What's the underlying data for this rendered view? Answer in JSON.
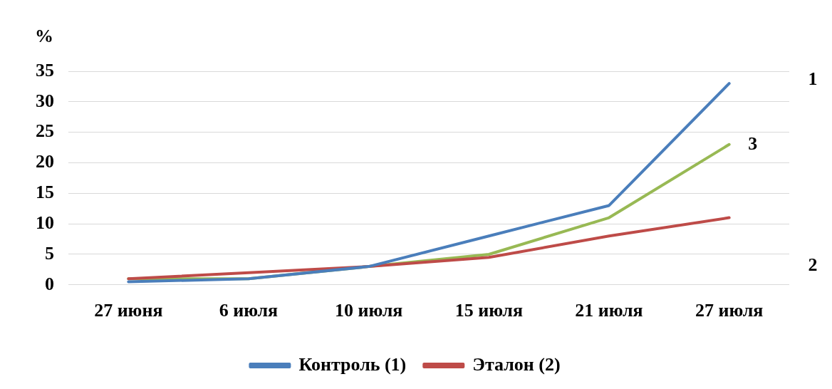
{
  "chart_data": {
    "type": "line",
    "ylabel": "%",
    "categories": [
      "27 июня",
      "6 июля",
      "10 июля",
      "15 июля",
      "21 июля",
      "27 июля"
    ],
    "series": [
      {
        "name": "Контроль (1)",
        "color": "#4a7ebb",
        "values": [
          0.5,
          1,
          3,
          8,
          13,
          33
        ]
      },
      {
        "name": "Эталон (2)",
        "color": "#be4b48",
        "values": [
          1,
          2,
          3,
          4.5,
          8,
          11
        ]
      },
      {
        "color": "#98b954",
        "values": [
          1,
          1,
          3,
          5,
          11,
          23
        ]
      }
    ],
    "ylim": [
      0,
      35
    ],
    "yticks": [
      0,
      5,
      10,
      15,
      20,
      25,
      30,
      35
    ],
    "grid": "y",
    "legend": "bottom",
    "marker": "none",
    "line_style": "solid",
    "annotations": [
      "1",
      {
        "text": "3",
        "x": "27 июля",
        "y": 23
      },
      "2"
    ]
  }
}
